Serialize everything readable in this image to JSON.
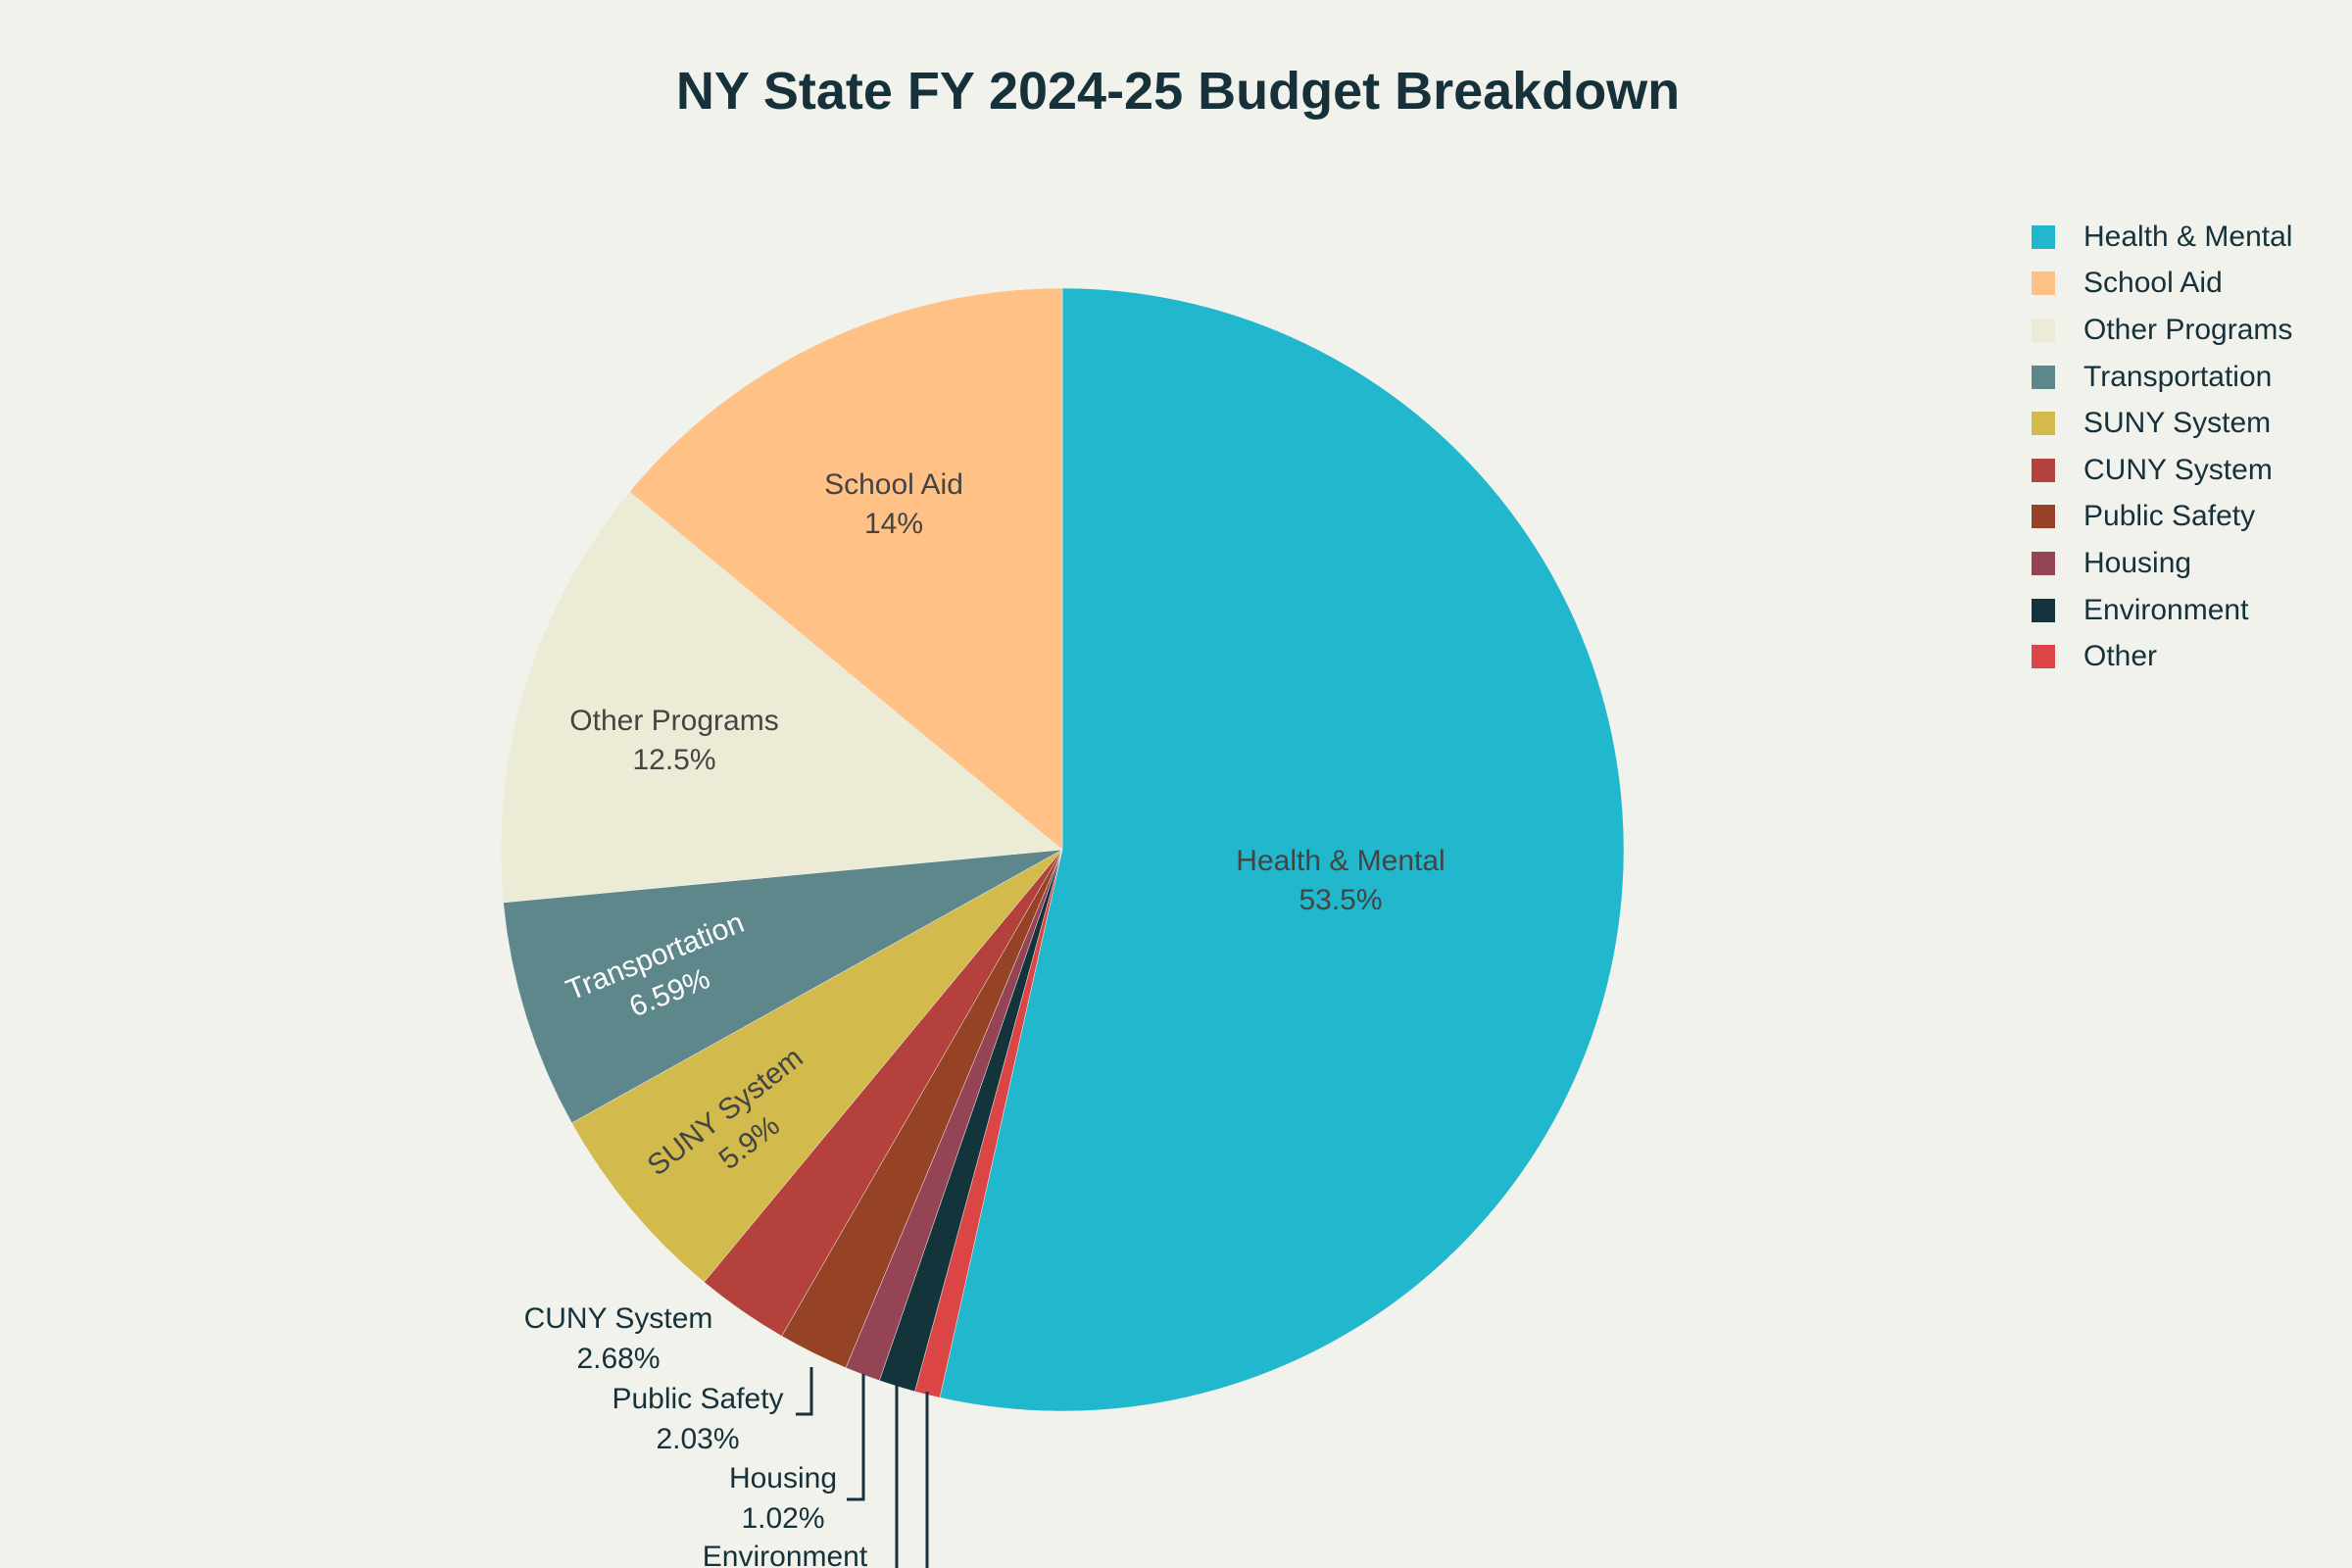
{
  "chart_data": {
    "type": "pie",
    "title": "NY State FY 2024-25 Budget Breakdown",
    "legend_position": "top-right",
    "slices": [
      {
        "label": "Health & Mental",
        "percent": 53.5,
        "percent_text": "53.5%",
        "color": "#21b7cc"
      },
      {
        "label": "School Aid",
        "percent": 14,
        "percent_text": "14%",
        "color": "#ffc185"
      },
      {
        "label": "Other Programs",
        "percent": 12.5,
        "percent_text": "12.5%",
        "color": "#ebebd6"
      },
      {
        "label": "Transportation",
        "percent": 6.59,
        "percent_text": "6.59%",
        "color": "#5d878b"
      },
      {
        "label": "SUNY System",
        "percent": 5.9,
        "percent_text": "5.9%",
        "color": "#d2ba4c"
      },
      {
        "label": "CUNY System",
        "percent": 2.68,
        "percent_text": "2.68%",
        "color": "#b4413c"
      },
      {
        "label": "Public Safety",
        "percent": 2.03,
        "percent_text": "2.03%",
        "color": "#964325"
      },
      {
        "label": "Housing",
        "percent": 1.02,
        "percent_text": "1.02%",
        "color": "#944454"
      },
      {
        "label": "Environment",
        "percent": 1.05,
        "color": "#13343b"
      },
      {
        "label": "Other",
        "percent": 0.73,
        "color": "#db4545"
      }
    ],
    "draw_order_clockwise_from_top": [
      "Health & Mental",
      "Other",
      "Environment",
      "Housing",
      "Public Safety",
      "CUNY System",
      "SUNY System",
      "Transportation",
      "Other Programs",
      "School Aid"
    ]
  }
}
